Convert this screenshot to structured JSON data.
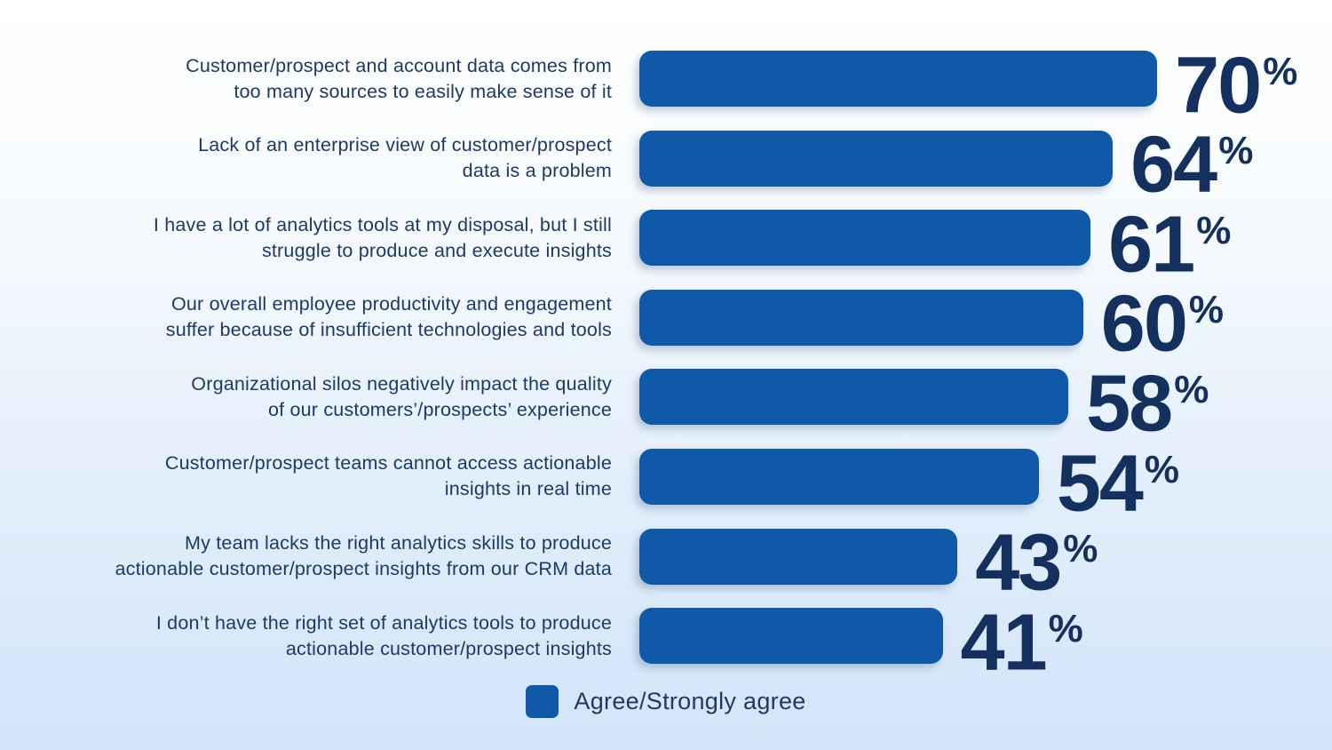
{
  "chart_data": {
    "type": "bar",
    "orientation": "horizontal",
    "unit": "%",
    "categories": [
      "Customer/prospect and account data comes from too many sources to easily make sense of it",
      "Lack of an enterprise view of customer/prospect data is a problem",
      "I have a lot of analytics tools at my disposal, but I still struggle to produce and execute insights",
      "Our overall employee productivity and engagement suffer because of insufficient technologies and tools",
      "Organizational silos negatively impact the quality of our customers’/prospects’ experience",
      "Customer/prospect teams cannot access actionable insights in real time",
      "My team lacks the right analytics skills to produce actionable customer/prospect insights from our CRM data",
      "I don’t have the right set of analytics tools to produce actionable customer/prospect insights"
    ],
    "values": [
      70,
      64,
      61,
      60,
      58,
      54,
      43,
      41
    ],
    "xlim": [
      0,
      100
    ],
    "grid": false,
    "value_labels": "end-of-bar",
    "legend_entries": [
      "Agree/Strongly agree"
    ],
    "legend_position": "bottom-center"
  },
  "rows": [
    {
      "label_line1": "Customer/prospect and account data comes from",
      "label_line2": "too many sources to easily make sense of it",
      "value": 70
    },
    {
      "label_line1": "Lack of an enterprise view of customer/prospect",
      "label_line2": "data is a problem",
      "value": 64
    },
    {
      "label_line1": "I have a lot of analytics tools at my disposal, but I still",
      "label_line2": "struggle to produce and execute insights",
      "value": 61
    },
    {
      "label_line1": "Our overall employee productivity and engagement",
      "label_line2": "suffer because of insufficient technologies and tools",
      "value": 60
    },
    {
      "label_line1": "Organizational silos negatively impact the quality",
      "label_line2": "of our customers’/prospects’ experience",
      "value": 58
    },
    {
      "label_line1": "Customer/prospect teams cannot access actionable",
      "label_line2": "insights in real time",
      "value": 54
    },
    {
      "label_line1": "My team lacks the right analytics skills to produce",
      "label_line2": "actionable customer/prospect insights from our CRM data",
      "value": 43
    },
    {
      "label_line1": "I don’t have the right set of analytics tools to produce",
      "label_line2": "actionable customer/prospect insights",
      "value": 41
    }
  ],
  "legend": {
    "label": "Agree/Strongly agree"
  },
  "unit_symbol": "%",
  "colors": {
    "bar": "#0F59A8",
    "value_text": "#14305E",
    "label_text": "#1B3A67",
    "background_top": "#FFFFFF",
    "background_bottom": "#D2E5F9"
  }
}
